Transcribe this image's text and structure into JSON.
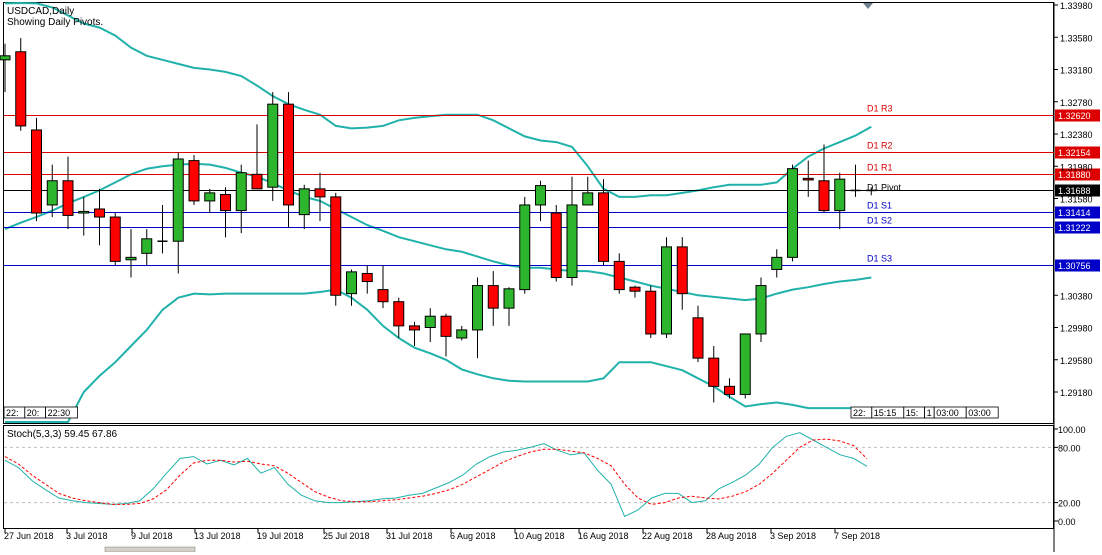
{
  "header": {
    "symbol_line": "USDCAD,Daily",
    "info_line": "Showing Daily Pivots."
  },
  "colors": {
    "bull": "#2db52d",
    "bear": "#ff0000",
    "bollinger": "#20b2aa",
    "resistance_line": "#dd0000",
    "support_line": "#0000c8",
    "pivot_line": "#000000",
    "stoch_main": "#20b2aa",
    "stoch_signal": "#ff0000"
  },
  "icons": {
    "scroll_marker": "triangle-down-icon"
  },
  "price_axis": {
    "ticks": [
      "1.33980",
      "1.33580",
      "1.33180",
      "1.32780",
      "1.32380",
      "1.31980",
      "1.31580",
      "1.30380",
      "1.29980",
      "1.29580",
      "1.29180"
    ]
  },
  "pivots": [
    {
      "label": "D1 R3",
      "value": "1.32620",
      "kind": "resistance"
    },
    {
      "label": "D1 R2",
      "value": "1.32154",
      "kind": "resistance"
    },
    {
      "label": "D1 R1",
      "value": "1.31880",
      "kind": "resistance"
    },
    {
      "label": "D1 Pivot",
      "value": "1.31688",
      "kind": "pivot"
    },
    {
      "label": "D1 S1",
      "value": "1.31414",
      "kind": "support"
    },
    {
      "label": "D1 S2",
      "value": "1.31222",
      "kind": "support"
    },
    {
      "label": "D1 S3",
      "value": "1.30756",
      "kind": "support"
    }
  ],
  "sessions": {
    "left": [
      "22:",
      "20:",
      "22:30"
    ],
    "right": [
      "22:",
      "15:15",
      "15:",
      "1",
      "03:00",
      "03:00"
    ]
  },
  "stoch": {
    "label": "Stoch(5,3,3) 59.45 67.86",
    "ticks": [
      "100.00",
      "80.00",
      "20.00",
      "0.00"
    ]
  },
  "date_axis": [
    "27 Jun 2018",
    "3 Jul 2018",
    "9 Jul 2018",
    "13 Jul 2018",
    "19 Jul 2018",
    "25 Jul 2018",
    "31 Jul 2018",
    "6 Aug 2018",
    "10 Aug 2018",
    "16 Aug 2018",
    "22 Aug 2018",
    "28 Aug 2018",
    "3 Sep 2018",
    "7 Sep 2018"
  ],
  "chart_data": {
    "type": "candlestick",
    "symbol": "USDCAD",
    "timeframe": "Daily",
    "price_range": [
      1.289,
      1.34
    ],
    "candles": [
      {
        "o": 1.333,
        "h": 1.335,
        "l": 1.329,
        "c": 1.3335
      },
      {
        "o": 1.334,
        "h": 1.3357,
        "l": 1.3242,
        "c": 1.3248
      },
      {
        "o": 1.3243,
        "h": 1.3258,
        "l": 1.313,
        "c": 1.314
      },
      {
        "o": 1.315,
        "h": 1.32,
        "l": 1.3135,
        "c": 1.318
      },
      {
        "o": 1.318,
        "h": 1.321,
        "l": 1.312,
        "c": 1.3137
      },
      {
        "o": 1.314,
        "h": 1.316,
        "l": 1.3112,
        "c": 1.3142
      },
      {
        "o": 1.3145,
        "h": 1.317,
        "l": 1.31,
        "c": 1.3135
      },
      {
        "o": 1.3135,
        "h": 1.314,
        "l": 1.3075,
        "c": 1.308
      },
      {
        "o": 1.3082,
        "h": 1.312,
        "l": 1.306,
        "c": 1.3085
      },
      {
        "o": 1.309,
        "h": 1.312,
        "l": 1.3075,
        "c": 1.3108
      },
      {
        "o": 1.3105,
        "h": 1.315,
        "l": 1.309,
        "c": 1.3105
      },
      {
        "o": 1.3105,
        "h": 1.3215,
        "l": 1.3065,
        "c": 1.3207
      },
      {
        "o": 1.3205,
        "h": 1.3212,
        "l": 1.315,
        "c": 1.3155
      },
      {
        "o": 1.3155,
        "h": 1.317,
        "l": 1.314,
        "c": 1.3165
      },
      {
        "o": 1.3163,
        "h": 1.3172,
        "l": 1.311,
        "c": 1.3143
      },
      {
        "o": 1.3143,
        "h": 1.32,
        "l": 1.3115,
        "c": 1.319
      },
      {
        "o": 1.3188,
        "h": 1.325,
        "l": 1.317,
        "c": 1.317
      },
      {
        "o": 1.3172,
        "h": 1.329,
        "l": 1.3155,
        "c": 1.3275
      },
      {
        "o": 1.3275,
        "h": 1.329,
        "l": 1.3122,
        "c": 1.315
      },
      {
        "o": 1.3138,
        "h": 1.3175,
        "l": 1.312,
        "c": 1.317
      },
      {
        "o": 1.317,
        "h": 1.319,
        "l": 1.313,
        "c": 1.316
      },
      {
        "o": 1.316,
        "h": 1.3165,
        "l": 1.3025,
        "c": 1.3038
      },
      {
        "o": 1.304,
        "h": 1.307,
        "l": 1.3025,
        "c": 1.3067
      },
      {
        "o": 1.3065,
        "h": 1.3075,
        "l": 1.304,
        "c": 1.3055
      },
      {
        "o": 1.3045,
        "h": 1.3075,
        "l": 1.3022,
        "c": 1.303
      },
      {
        "o": 1.303,
        "h": 1.3035,
        "l": 1.2985,
        "c": 1.3
      },
      {
        "o": 1.3,
        "h": 1.3005,
        "l": 1.2975,
        "c": 1.2995
      },
      {
        "o": 1.2998,
        "h": 1.3022,
        "l": 1.298,
        "c": 1.3012
      },
      {
        "o": 1.3012,
        "h": 1.3015,
        "l": 1.2962,
        "c": 1.2987
      },
      {
        "o": 1.2985,
        "h": 1.3,
        "l": 1.2982,
        "c": 1.2995
      },
      {
        "o": 1.2995,
        "h": 1.306,
        "l": 1.296,
        "c": 1.305
      },
      {
        "o": 1.305,
        "h": 1.3068,
        "l": 1.3,
        "c": 1.3022
      },
      {
        "o": 1.3022,
        "h": 1.3048,
        "l": 1.3,
        "c": 1.3046
      },
      {
        "o": 1.3045,
        "h": 1.316,
        "l": 1.304,
        "c": 1.315
      },
      {
        "o": 1.315,
        "h": 1.318,
        "l": 1.313,
        "c": 1.3174
      },
      {
        "o": 1.314,
        "h": 1.315,
        "l": 1.3055,
        "c": 1.306
      },
      {
        "o": 1.306,
        "h": 1.3185,
        "l": 1.305,
        "c": 1.315
      },
      {
        "o": 1.315,
        "h": 1.3185,
        "l": 1.315,
        "c": 1.3165
      },
      {
        "o": 1.3165,
        "h": 1.3182,
        "l": 1.3075,
        "c": 1.308
      },
      {
        "o": 1.308,
        "h": 1.309,
        "l": 1.304,
        "c": 1.3045
      },
      {
        "o": 1.3048,
        "h": 1.305,
        "l": 1.3035,
        "c": 1.3043
      },
      {
        "o": 1.3043,
        "h": 1.305,
        "l": 1.2985,
        "c": 1.299
      },
      {
        "o": 1.299,
        "h": 1.311,
        "l": 1.2985,
        "c": 1.3098
      },
      {
        "o": 1.3098,
        "h": 1.311,
        "l": 1.302,
        "c": 1.304
      },
      {
        "o": 1.301,
        "h": 1.3025,
        "l": 1.2955,
        "c": 1.296
      },
      {
        "o": 1.296,
        "h": 1.2975,
        "l": 1.2905,
        "c": 1.2925
      },
      {
        "o": 1.2925,
        "h": 1.2935,
        "l": 1.291,
        "c": 1.2915
      },
      {
        "o": 1.2915,
        "h": 1.299,
        "l": 1.291,
        "c": 1.299
      },
      {
        "o": 1.299,
        "h": 1.306,
        "l": 1.298,
        "c": 1.305
      },
      {
        "o": 1.307,
        "h": 1.3095,
        "l": 1.306,
        "c": 1.3085
      },
      {
        "o": 1.3085,
        "h": 1.32,
        "l": 1.308,
        "c": 1.3195
      },
      {
        "o": 1.3183,
        "h": 1.3205,
        "l": 1.316,
        "c": 1.3181
      },
      {
        "o": 1.318,
        "h": 1.3225,
        "l": 1.314,
        "c": 1.3143
      },
      {
        "o": 1.3143,
        "h": 1.319,
        "l": 1.312,
        "c": 1.3182
      },
      {
        "o": 1.3168,
        "h": 1.32,
        "l": 1.316,
        "c": 1.3168
      },
      {
        "o": 1.3168,
        "h": 1.3172,
        "l": 1.3162,
        "c": 1.3168
      }
    ],
    "bollinger": {
      "upper": [
        1.34,
        1.3405,
        1.34,
        1.3395,
        1.3385,
        1.3375,
        1.337,
        1.336,
        1.3345,
        1.3335,
        1.333,
        1.3325,
        1.332,
        1.3318,
        1.3315,
        1.331,
        1.3298,
        1.3285,
        1.3275,
        1.3268,
        1.3262,
        1.3248,
        1.3245,
        1.3246,
        1.3248,
        1.3255,
        1.3258,
        1.326,
        1.3262,
        1.3262,
        1.3262,
        1.3255,
        1.3245,
        1.3235,
        1.323,
        1.3228,
        1.3222,
        1.3198,
        1.317,
        1.316,
        1.316,
        1.3162,
        1.3162,
        1.3165,
        1.3168,
        1.3172,
        1.3175,
        1.3175,
        1.3175,
        1.3178,
        1.3195,
        1.321,
        1.322,
        1.3228,
        1.3236,
        1.3247
      ],
      "middle": [
        1.312,
        1.3128,
        1.3135,
        1.3143,
        1.3152,
        1.316,
        1.3168,
        1.3178,
        1.3188,
        1.3195,
        1.3198,
        1.32,
        1.3201,
        1.32,
        1.3196,
        1.319,
        1.3185,
        1.3177,
        1.3168,
        1.316,
        1.3155,
        1.3145,
        1.3135,
        1.3125,
        1.3118,
        1.311,
        1.3105,
        1.31,
        1.3095,
        1.3092,
        1.3086,
        1.308,
        1.3075,
        1.3072,
        1.3072,
        1.307,
        1.3068,
        1.3068,
        1.3065,
        1.306,
        1.3055,
        1.305,
        1.3046,
        1.3042,
        1.3038,
        1.3036,
        1.3034,
        1.3032,
        1.3034,
        1.304,
        1.3045,
        1.3048,
        1.3052,
        1.3055,
        1.3057,
        1.306
      ],
      "lower": [
        1.2805,
        1.2812,
        1.2825,
        1.2848,
        1.288,
        1.2918,
        1.2938,
        1.2955,
        1.2975,
        1.2995,
        1.302,
        1.3035,
        1.304,
        1.3039,
        1.304,
        1.304,
        1.304,
        1.304,
        1.304,
        1.304,
        1.3042,
        1.3045,
        1.3035,
        1.302,
        1.3,
        1.2985,
        1.2973,
        1.2966,
        1.2958,
        1.2946,
        1.294,
        1.2935,
        1.2932,
        1.2931,
        1.2931,
        1.2931,
        1.2931,
        1.2931,
        1.2935,
        1.2955,
        1.2955,
        1.2955,
        1.295,
        1.2945,
        1.2935,
        1.2925,
        1.2912,
        1.29,
        1.2903,
        1.2905,
        1.2902,
        1.2898,
        1.2898,
        1.2898,
        1.2898,
        1.2898
      ]
    },
    "stochastic": {
      "main": [
        66,
        58,
        44,
        34,
        25,
        22,
        20,
        19,
        18,
        19,
        22,
        35,
        52,
        68,
        70,
        62,
        66,
        61,
        68,
        52,
        58,
        40,
        28,
        22,
        20,
        20,
        21,
        22,
        24,
        25,
        28,
        30,
        36,
        42,
        50,
        62,
        70,
        75,
        77,
        80,
        84,
        77,
        72,
        74,
        55,
        40,
        5,
        12,
        25,
        30,
        30,
        20,
        22,
        35,
        42,
        50,
        62,
        80,
        92,
        96,
        88,
        80,
        72,
        68,
        59.45
      ],
      "signal": [
        70,
        62,
        50,
        40,
        30,
        25,
        22,
        20,
        18,
        18,
        19,
        24,
        34,
        50,
        63,
        66,
        66,
        64,
        65,
        62,
        60,
        52,
        42,
        32,
        26,
        22,
        21,
        21,
        22,
        23,
        25,
        27,
        30,
        34,
        40,
        48,
        56,
        64,
        70,
        75,
        78,
        78,
        76,
        74,
        68,
        60,
        40,
        25,
        18,
        20,
        25,
        27,
        25,
        24,
        27,
        32,
        40,
        52,
        66,
        80,
        88,
        89,
        87,
        82,
        67.86
      ]
    }
  }
}
